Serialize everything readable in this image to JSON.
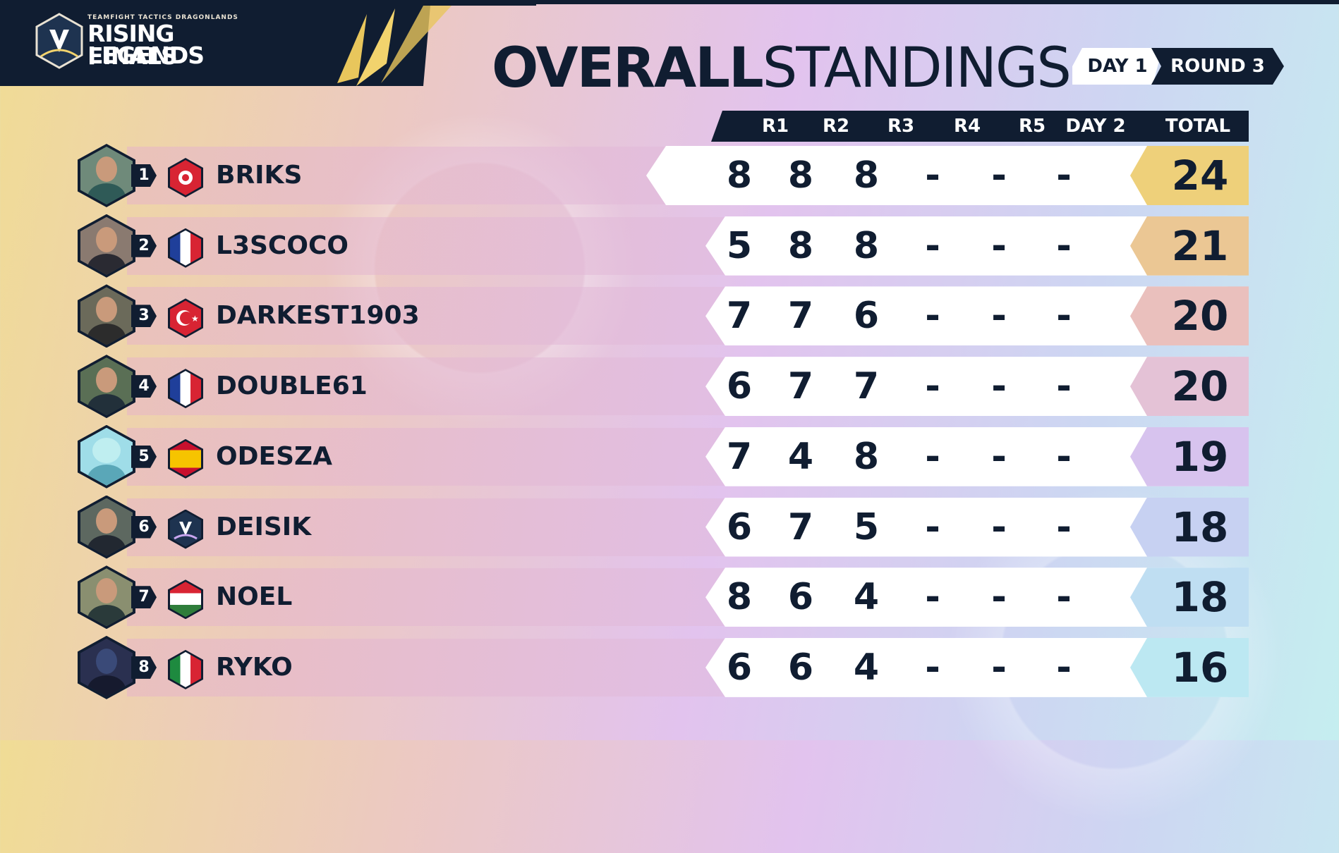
{
  "branding": {
    "event_small": "TEAMFIGHT TACTICS DRAGONLANDS",
    "event_line1": "RISING LEGENDS",
    "event_line2": "FINALS"
  },
  "title": {
    "bold": "OVERALL",
    "light": "STANDINGS"
  },
  "stage": {
    "day": "DAY 1",
    "round": "ROUND 3"
  },
  "columns": [
    "R1",
    "R2",
    "R3",
    "R4",
    "R5",
    "DAY 2",
    "TOTAL"
  ],
  "colors": {
    "navy": "#101d31",
    "total_gold": "#eed07a",
    "total_tan": "#ebc794",
    "total_pink": "#eac0bd",
    "total_lilac": "#d7c3ee",
    "total_periwinkle": "#c7d1f2",
    "total_sky": "#bfdef2",
    "total_cyan": "#bce8f2"
  },
  "players": [
    {
      "rank": "1",
      "name": "BRIKS",
      "flag": "tunisia-flag",
      "scores": [
        "8",
        "8",
        "8",
        "-",
        "-",
        "-"
      ],
      "total": "24",
      "total_color": "#eed07a"
    },
    {
      "rank": "2",
      "name": "L3SCOCO",
      "flag": "france-flag",
      "scores": [
        "5",
        "8",
        "8",
        "-",
        "-",
        "-"
      ],
      "total": "21",
      "total_color": "#ebc794"
    },
    {
      "rank": "3",
      "name": "DARKEST1903",
      "flag": "turkey-flag",
      "scores": [
        "7",
        "7",
        "6",
        "-",
        "-",
        "-"
      ],
      "total": "20",
      "total_color": "#eac0bd"
    },
    {
      "rank": "4",
      "name": "DOUBLE61",
      "flag": "france-flag",
      "scores": [
        "6",
        "7",
        "7",
        "-",
        "-",
        "-"
      ],
      "total": "20",
      "total_color": "#e4c2d6"
    },
    {
      "rank": "5",
      "name": "ODESZA",
      "flag": "spain-flag",
      "scores": [
        "7",
        "4",
        "8",
        "-",
        "-",
        "-"
      ],
      "total": "19",
      "total_color": "#d7c3ee"
    },
    {
      "rank": "6",
      "name": "DEISIK",
      "flag": "rising-legends-logo",
      "scores": [
        "6",
        "7",
        "5",
        "-",
        "-",
        "-"
      ],
      "total": "18",
      "total_color": "#c7d1f2"
    },
    {
      "rank": "7",
      "name": "NOEL",
      "flag": "hungary-flag",
      "scores": [
        "8",
        "6",
        "4",
        "-",
        "-",
        "-"
      ],
      "total": "18",
      "total_color": "#bfdef2"
    },
    {
      "rank": "8",
      "name": "RYKO",
      "flag": "italy-flag",
      "scores": [
        "6",
        "6",
        "4",
        "-",
        "-",
        "-"
      ],
      "total": "16",
      "total_color": "#bce8f2"
    }
  ]
}
